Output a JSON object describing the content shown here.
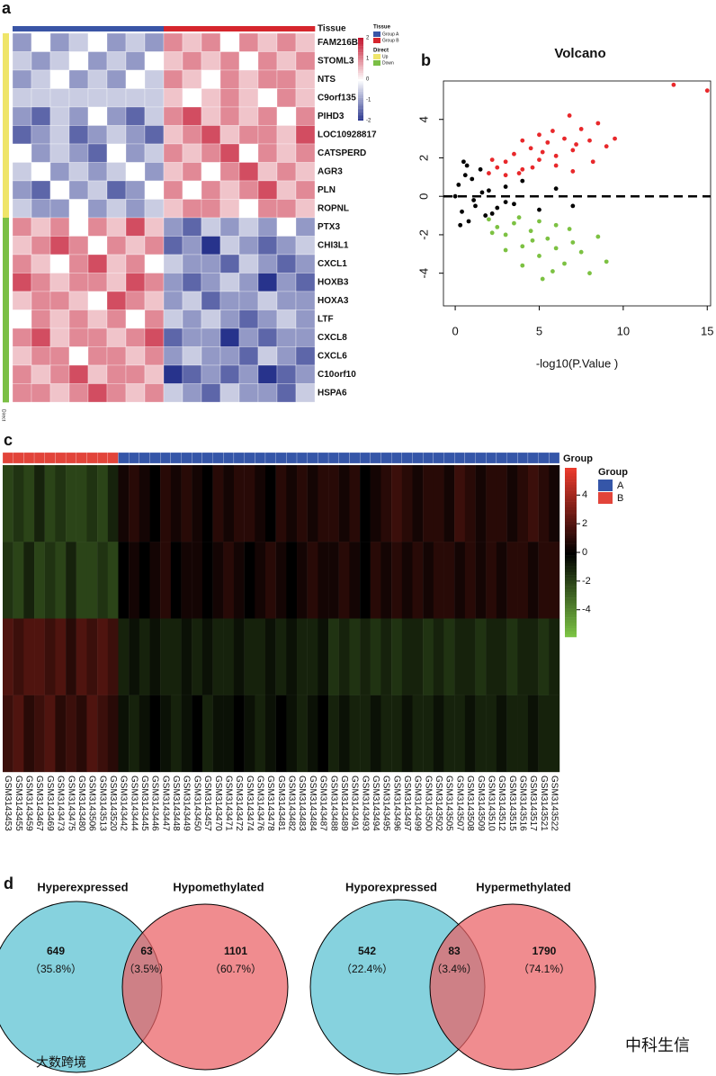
{
  "panel_labels": [
    "a",
    "b",
    "c",
    "d"
  ],
  "watermarks": [
    "中科生信",
    "大数跨境"
  ],
  "chart_data": [
    {
      "type": "heatmap",
      "tissue_label": "Tissue",
      "direction_label": "Direct",
      "rows": [
        "FAM216B",
        "STOML3",
        "NTS",
        "C9orf135",
        "PIHD3",
        "LOC10928817",
        "CATSPERD",
        "AGR3",
        "PLN",
        "ROPNL",
        "PTX3",
        "CHI3L1",
        "CXCL1",
        "HOXB3",
        "HOXA3",
        "LTF",
        "CXCL8",
        "CXCL6",
        "C10orf10",
        "HSPA6"
      ],
      "groups": [
        {
          "name": "Group A",
          "color": "#3a55a6"
        },
        {
          "name": "Group B",
          "color": "#d6262d"
        }
      ],
      "column_group": [
        0,
        0,
        0,
        0,
        0,
        0,
        0,
        0,
        1,
        1,
        1,
        1,
        1,
        1,
        1,
        1
      ],
      "directions": [
        {
          "name": "Up",
          "color": "#efe56a"
        },
        {
          "name": "Down",
          "color": "#7bbf45"
        }
      ],
      "row_direction": [
        0,
        0,
        0,
        0,
        0,
        0,
        0,
        0,
        0,
        0,
        1,
        1,
        1,
        1,
        1,
        1,
        1,
        1,
        1,
        1
      ],
      "clim": [
        -2,
        2
      ],
      "legend_ticks": [
        2,
        1,
        0,
        -1,
        -2
      ],
      "values": [
        [
          -1,
          0,
          -1,
          -0.5,
          0,
          -1,
          -0.5,
          -1,
          1,
          0.5,
          1,
          0,
          1,
          0.5,
          1,
          0.5
        ],
        [
          -0.5,
          -1,
          -0.5,
          0,
          -1,
          -0.5,
          -1,
          0,
          0.5,
          1,
          0.5,
          1,
          0,
          1,
          0.5,
          1
        ],
        [
          -1,
          -0.5,
          0,
          -1,
          -0.5,
          -1,
          0,
          -0.5,
          1,
          0.5,
          0,
          1,
          0.5,
          1,
          1,
          0.5
        ],
        [
          -0.5,
          -0.5,
          -0.5,
          -0.5,
          -0.5,
          -0.5,
          -0.5,
          -0.5,
          0.5,
          0,
          0.5,
          1,
          0.5,
          0,
          1,
          0.5
        ],
        [
          -1,
          -1.5,
          -0.5,
          -1,
          0,
          -1,
          -1.5,
          -0.5,
          1,
          1.5,
          0.5,
          1,
          0.5,
          1,
          0,
          1
        ],
        [
          -1.5,
          -1,
          -0.5,
          -1.5,
          -1,
          -0.5,
          -1,
          -1.5,
          0.5,
          1,
          1.5,
          0.5,
          1,
          1,
          0.5,
          1.5
        ],
        [
          0,
          -1,
          -0.5,
          -1,
          -1.5,
          0,
          -1,
          -0.5,
          1,
          0.5,
          1,
          1.5,
          0,
          1,
          0.5,
          1
        ],
        [
          -0.5,
          0,
          -1,
          -0.5,
          -1,
          -0.5,
          0,
          -1,
          0.5,
          1,
          0,
          1,
          1.5,
          0.5,
          1,
          0.5
        ],
        [
          -1,
          -1.5,
          0,
          -1,
          -0.5,
          -1.5,
          -1,
          0,
          1,
          0,
          1,
          0.5,
          1,
          1.5,
          0.5,
          1
        ],
        [
          -0.5,
          -1,
          -1,
          0,
          -1,
          -0.5,
          -1,
          -0.5,
          0.5,
          1,
          1,
          0.5,
          0,
          1,
          1,
          0.5
        ],
        [
          1,
          0.5,
          1,
          0,
          1,
          0.5,
          1.5,
          0.5,
          -1,
          -1.5,
          -0.5,
          -1,
          -0.5,
          -1,
          0,
          -1
        ],
        [
          0.5,
          1,
          1.5,
          1,
          0,
          1,
          0.5,
          1,
          -1.5,
          -1,
          -2,
          -0.5,
          -1,
          -1.5,
          -1,
          -0.5
        ],
        [
          1,
          0.5,
          0,
          1,
          1.5,
          0.5,
          1,
          0,
          -0.5,
          -1,
          -1,
          -1.5,
          -0.5,
          -1,
          -1.5,
          -1
        ],
        [
          1.5,
          1,
          0.5,
          1,
          1,
          0.5,
          1.5,
          1,
          -1,
          -1.5,
          -1,
          -0.5,
          -1,
          -2,
          -1,
          -1.5
        ],
        [
          0.5,
          1,
          1,
          0.5,
          0,
          1.5,
          1,
          0.5,
          -1,
          -0.5,
          -1.5,
          -1,
          -1,
          -0.5,
          -1,
          -1
        ],
        [
          0,
          1,
          0.5,
          1,
          0.5,
          1,
          0,
          1,
          -0.5,
          -1,
          -0.5,
          -1,
          -1.5,
          -1,
          -0.5,
          -1
        ],
        [
          1,
          1.5,
          0.5,
          1,
          1,
          0.5,
          1,
          1.5,
          -1.5,
          -1,
          -1,
          -2,
          -1,
          -1.5,
          -1,
          -1
        ],
        [
          0.5,
          1,
          1,
          0,
          1,
          1,
          0.5,
          1,
          -1,
          -0.5,
          -1,
          -1,
          -1.5,
          -0.5,
          -1,
          -1.5
        ],
        [
          1,
          0.5,
          1,
          1.5,
          0.5,
          1,
          1,
          0.5,
          -2,
          -1.5,
          -1,
          -1.5,
          -1,
          -2,
          -1.5,
          -1
        ],
        [
          1,
          1,
          0.5,
          1,
          1.5,
          1,
          0.5,
          1,
          -0.5,
          -1,
          -1.5,
          -0.5,
          -1,
          -1,
          -1.5,
          -0.5
        ]
      ]
    },
    {
      "type": "scatter",
      "title": "Volcano",
      "xlabel": "-log10(P.Value )",
      "xlim": [
        -0.7,
        15.2
      ],
      "ylim": [
        -5.7,
        6
      ],
      "xticks": [
        0,
        5,
        10,
        15
      ],
      "yticks": [
        -4,
        -2,
        0,
        2,
        4
      ],
      "hline": 0,
      "series": [
        {
          "color": "#e8282b",
          "x": [
            2,
            2.5,
            3,
            3.5,
            4,
            4.5,
            5,
            5.5,
            6,
            6.5,
            7,
            7.5,
            8,
            8.5,
            9,
            3,
            4,
            5,
            6,
            7,
            2.2,
            3.8,
            5.2,
            6.8,
            8.2,
            9.5,
            4.6,
            5.8,
            7.2,
            13,
            15
          ],
          "y": [
            1.2,
            1.5,
            1.8,
            2.2,
            1.4,
            2.5,
            1.9,
            2.8,
            2.1,
            3,
            2.4,
            3.5,
            2.9,
            3.8,
            2.6,
            1.1,
            2.9,
            3.2,
            1.6,
            1.3,
            1.9,
            1.2,
            2.3,
            4.2,
            1.8,
            3,
            1.5,
            3.4,
            2.7,
            5.8,
            5.5
          ]
        },
        {
          "color": "#7cc142",
          "x": [
            2,
            2.5,
            3,
            3.5,
            4,
            4.5,
            5,
            5.5,
            6,
            6.5,
            7,
            7.5,
            8,
            8.5,
            9,
            3,
            4,
            5,
            6,
            2.2,
            3.8,
            5.2,
            6.8,
            4.6,
            5.8
          ],
          "y": [
            -1.2,
            -1.6,
            -2,
            -1.4,
            -2.6,
            -1.8,
            -3.1,
            -2.2,
            -1.5,
            -3.5,
            -2.4,
            -2.9,
            -4,
            -2.1,
            -3.4,
            -2.8,
            -3.6,
            -1.3,
            -2.7,
            -1.9,
            -1.1,
            -4.3,
            -1.7,
            -2.3,
            -3.9
          ]
        },
        {
          "color": "#000000",
          "x": [
            0,
            0.2,
            0.4,
            0.6,
            0.8,
            1,
            1.2,
            1.5,
            1.8,
            2,
            2.5,
            3,
            3.5,
            4,
            5,
            6,
            7,
            0.3,
            0.7,
            1.1,
            1.6,
            2.2,
            3,
            0.5
          ],
          "y": [
            0,
            0.6,
            -0.8,
            1.1,
            -1.3,
            0.9,
            -0.5,
            1.4,
            -1,
            0.3,
            -0.6,
            0.5,
            -0.4,
            0.8,
            -0.7,
            0.4,
            -0.5,
            -1.5,
            1.6,
            -0.2,
            0.2,
            -0.9,
            -0.3,
            1.8
          ]
        }
      ]
    },
    {
      "type": "heatmap",
      "annotation_label": "Group",
      "legend_title": "Group",
      "groups": [
        {
          "name": "A",
          "color": "#3556a8"
        },
        {
          "name": "B",
          "color": "#e2443a"
        }
      ],
      "columns": [
        "GSM3143453",
        "GSM3143455",
        "GSM3143459",
        "GSM3143467",
        "GSM3143469",
        "GSM3143473",
        "GSM3143475",
        "GSM3143480",
        "GSM3143506",
        "GSM3143513",
        "GSM3143520",
        "GSM3143442",
        "GSM3143444",
        "GSM3143445",
        "GSM3143446",
        "GSM3143447",
        "GSM3143448",
        "GSM3143449",
        "GSM3143450",
        "GSM3143457",
        "GSM3143470",
        "GSM3143471",
        "GSM3143472",
        "GSM3143474",
        "GSM3143476",
        "GSM3143478",
        "GSM3143481",
        "GSM3143482",
        "GSM3143483",
        "GSM3143484",
        "GSM3143487",
        "GSM3143488",
        "GSM3143489",
        "GSM3143491",
        "GSM3143493",
        "GSM3143494",
        "GSM3143495",
        "GSM3143496",
        "GSM3143497",
        "GSM3143499",
        "GSM3143500",
        "GSM3143502",
        "GSM3143505",
        "GSM3143507",
        "GSM3143508",
        "GSM3143509",
        "GSM3143510",
        "GSM3143512",
        "GSM3143515",
        "GSM3143516",
        "GSM3143517",
        "GSM3143521",
        "GSM3143522"
      ],
      "column_group": [
        1,
        1,
        1,
        1,
        1,
        1,
        1,
        1,
        1,
        1,
        1,
        0,
        0,
        0,
        0,
        0,
        0,
        0,
        0,
        0,
        0,
        0,
        0,
        0,
        0,
        0,
        0,
        0,
        0,
        0,
        0,
        0,
        0,
        0,
        0,
        0,
        0,
        0,
        0,
        0,
        0,
        0,
        0,
        0,
        0,
        0,
        0,
        0,
        0,
        0,
        0,
        0,
        0
      ],
      "clim": [
        -5.9,
        5.9
      ],
      "legend_ticks": [
        4,
        2,
        0,
        -2,
        -4
      ],
      "values": [
        [
          -2,
          -1.5,
          -2,
          -1,
          -2,
          -1.5,
          -2,
          -2,
          -1.5,
          -2,
          -1,
          0.5,
          1,
          0.5,
          0,
          1,
          0.5,
          1,
          0.5,
          0,
          1,
          0.5,
          1,
          1,
          0.5,
          0,
          1,
          0.5,
          1,
          0.5,
          1,
          1,
          0.5,
          1,
          0,
          0.5,
          1,
          1.5,
          1,
          0.5,
          1,
          1,
          0.5,
          1.5,
          1,
          0.5,
          1,
          1,
          0.5,
          1,
          1.5,
          1,
          0.5
        ],
        [
          -1.5,
          -2,
          -1,
          -2,
          -1.5,
          -2,
          -1,
          -2,
          -2,
          -1.5,
          -2,
          0,
          0.5,
          0,
          0.5,
          1,
          0,
          0.5,
          0.5,
          0,
          0.5,
          1,
          0.5,
          0,
          0.5,
          1,
          0.5,
          0,
          0.5,
          1,
          0.5,
          0.5,
          1,
          0.5,
          0,
          1,
          0.5,
          1,
          0.5,
          1,
          0.5,
          1,
          1,
          0.5,
          1,
          0.5,
          1,
          0.5,
          1,
          1,
          0.5,
          1,
          1
        ],
        [
          2,
          1.5,
          2,
          2,
          1.5,
          2,
          1,
          2,
          1.5,
          2,
          1.5,
          -1,
          -0.5,
          -1,
          -0.5,
          -1,
          -1,
          -0.5,
          -1,
          -0.5,
          -1,
          -1,
          -0.5,
          -1,
          -1,
          -0.5,
          -1,
          -0.5,
          -1,
          -1,
          -0.5,
          -1.5,
          -1,
          -1.5,
          -1,
          -1.5,
          -1,
          -1.5,
          -1,
          -1,
          -1.5,
          -1,
          -1.5,
          -1,
          -1,
          -1.5,
          -1,
          -1,
          -1.5,
          -1,
          -1,
          -1.5,
          -1
        ],
        [
          1.5,
          2,
          1,
          1.5,
          2,
          1,
          1.5,
          1,
          2,
          1.5,
          1,
          -0.5,
          -1,
          -0.5,
          0,
          -0.5,
          -1,
          -0.5,
          0,
          -1,
          -0.5,
          -0.5,
          0,
          -0.5,
          -1,
          -0.5,
          0,
          -0.5,
          -1,
          -0.5,
          0,
          -1,
          -0.5,
          -1,
          -1,
          -0.5,
          -1,
          -1,
          -0.5,
          -1,
          -1,
          -0.5,
          -1,
          -1,
          -0.5,
          -1,
          -1,
          -0.5,
          -1,
          -1,
          -0.5,
          -1,
          -1
        ]
      ]
    },
    {
      "type": "venn",
      "diagrams": [
        {
          "sets": [
            "Hyperexpressed",
            "Hypomethylated"
          ],
          "values": [
            649,
            63,
            1101
          ],
          "percent_labels": [
            "（35.8%）",
            "（3.5%）",
            "（60.7%）"
          ]
        },
        {
          "sets": [
            "Hyporexpressed",
            "Hypermethylated"
          ],
          "values": [
            542,
            83,
            1790
          ],
          "percent_labels": [
            "（22.4%）",
            "（3.4%）",
            "（74.1%）"
          ]
        }
      ]
    }
  ]
}
